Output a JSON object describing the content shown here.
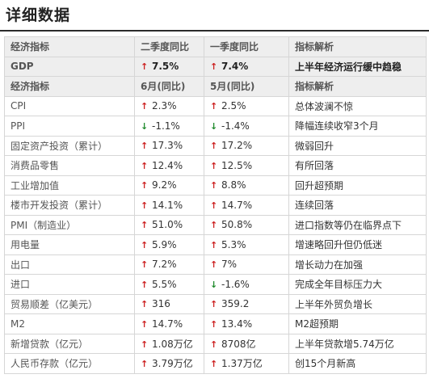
{
  "title": "详细数据",
  "colors": {
    "up": "#cc1f1f",
    "down": "#1f8a2c",
    "header_bg": "#eeeeee"
  },
  "header1": [
    "经济指标",
    "二季度同比",
    "一季度同比",
    "指标解析"
  ],
  "gdp": {
    "name": "GDP",
    "v1": "7.5%",
    "d1": "up",
    "v2": "7.4%",
    "d2": "up",
    "note": "上半年经济运行缓中趋稳"
  },
  "header2": [
    "经济指标",
    "6月(同比)",
    "5月(同比)",
    "指标解析"
  ],
  "rows": [
    {
      "name": "CPI",
      "v1": "2.3%",
      "d1": "up",
      "v2": "2.5%",
      "d2": "up",
      "note": "总体波澜不惊"
    },
    {
      "name": "PPI",
      "v1": "-1.1%",
      "d1": "down",
      "v2": "-1.4%",
      "d2": "down",
      "note": "降幅连续收窄3个月"
    },
    {
      "name": "固定资产投资（累计）",
      "v1": "17.3%",
      "d1": "up",
      "v2": "17.2%",
      "d2": "up",
      "note": "微弱回升"
    },
    {
      "name": "消费品零售",
      "v1": "12.4%",
      "d1": "up",
      "v2": "12.5%",
      "d2": "up",
      "note": "有所回落"
    },
    {
      "name": "工业增加值",
      "v1": "9.2%",
      "d1": "up",
      "v2": "8.8%",
      "d2": "up",
      "note": "回升超预期"
    },
    {
      "name": "楼市开发投资（累计）",
      "v1": "14.1%",
      "d1": "up",
      "v2": "14.7%",
      "d2": "up",
      "note": "连续回落"
    },
    {
      "name": "PMI（制造业）",
      "v1": "51.0%",
      "d1": "up",
      "v2": "50.8%",
      "d2": "up",
      "note": "进口指数等仍在临界点下"
    },
    {
      "name": "用电量",
      "v1": "5.9%",
      "d1": "up",
      "v2": "5.3%",
      "d2": "up",
      "note": "增速略回升但仍低迷"
    },
    {
      "name": "出口",
      "v1": "7.2%",
      "d1": "up",
      "v2": "7%",
      "d2": "up",
      "note": "增长动力在加强"
    },
    {
      "name": "进口",
      "v1": "5.5%",
      "d1": "up",
      "v2": "-1.6%",
      "d2": "down",
      "note": "完成全年目标压力大"
    },
    {
      "name": "贸易顺差（亿美元）",
      "v1": "316",
      "d1": "up",
      "v2": "359.2",
      "d2": "up",
      "note": "上半年外贸负增长"
    },
    {
      "name": "M2",
      "v1": "14.7%",
      "d1": "up",
      "v2": "13.4%",
      "d2": "up",
      "note": "M2超预期"
    },
    {
      "name": "新增贷款（亿元）",
      "v1": "1.08万亿",
      "d1": "up",
      "v2": "8708亿",
      "d2": "up",
      "note": "上半年贷款增5.74万亿"
    },
    {
      "name": "人民币存款（亿元）",
      "v1": "3.79万亿",
      "d1": "up",
      "v2": "1.37万亿",
      "d2": "up",
      "note": "创15个月新高"
    }
  ]
}
